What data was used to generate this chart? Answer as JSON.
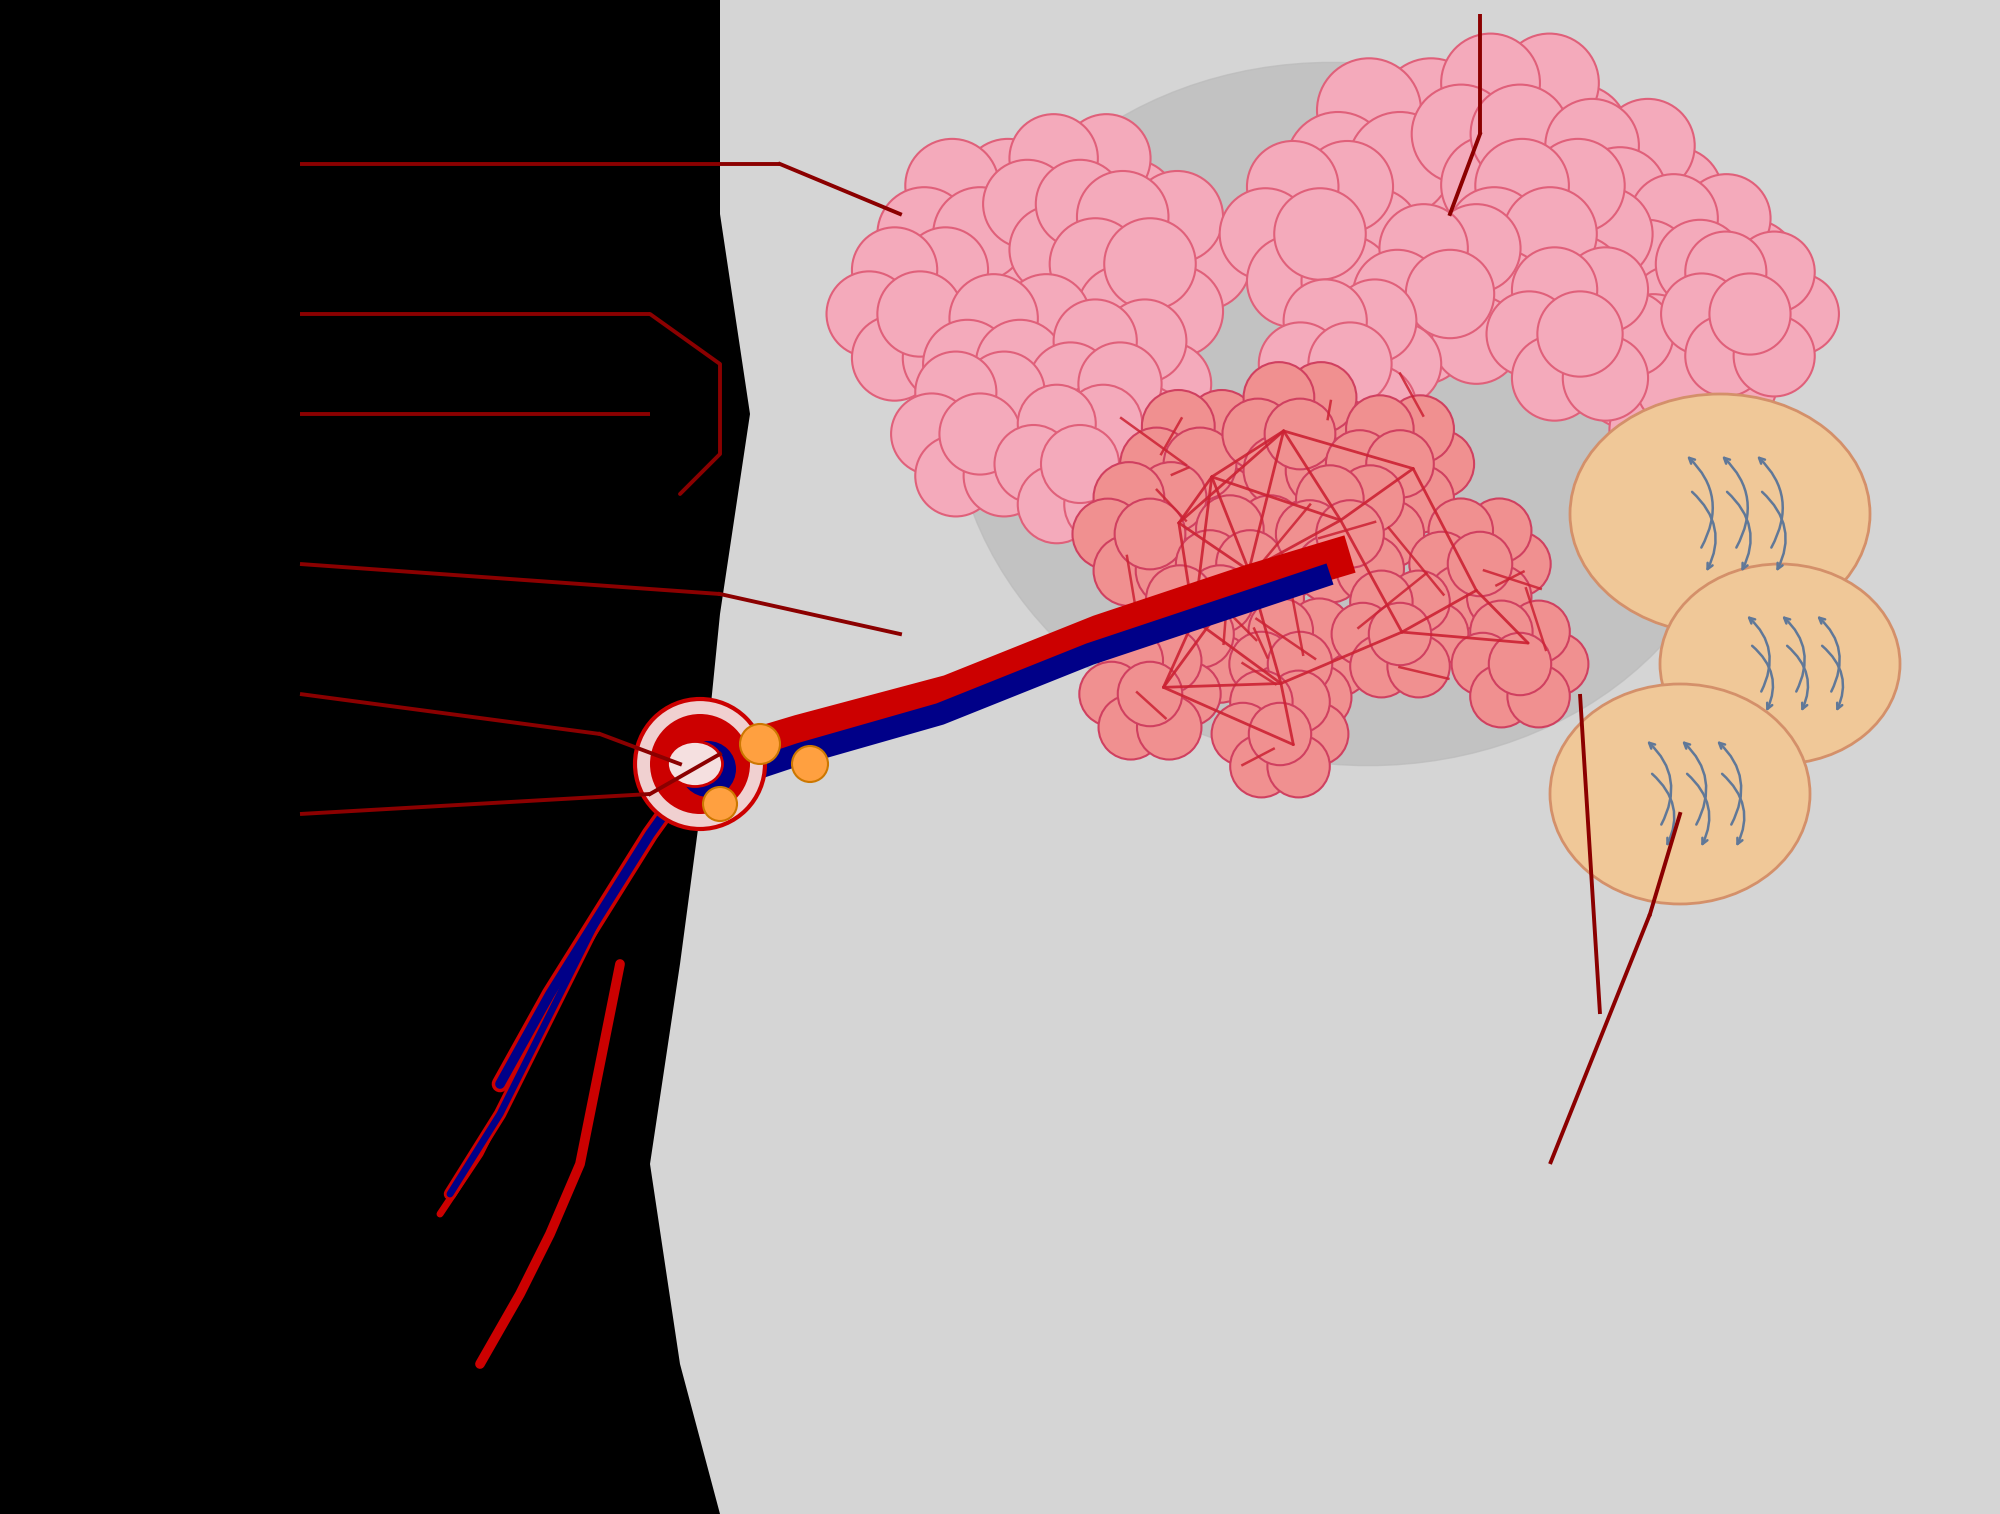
{
  "bg_color": "#000000",
  "panel_color": "#D5D5D5",
  "panel_shadow_color": "#BBBBBB",
  "alveolus_pink_main": "#F08098",
  "alveolus_pink_fill": "#F4AABB",
  "alveolus_pink_light": "#F8C8D4",
  "alveolus_pink_edge": "#E0607A",
  "alveolus_pink_inner_edge": "#CC8898",
  "capillary_red": "#CC0022",
  "capillary_blue": "#1A1A88",
  "artery_red": "#CC0000",
  "vein_blue": "#000088",
  "ann_color": "#8B0000",
  "orange_spot": "#FFA040",
  "tan_sac": "#F0C898",
  "tan_sac_edge": "#D4906A",
  "gas_arrow_color": "#607898",
  "tube_wall": "#F0D0D0",
  "cap_network_red": "#CC2233",
  "cap_network_dark_red": "#880011"
}
